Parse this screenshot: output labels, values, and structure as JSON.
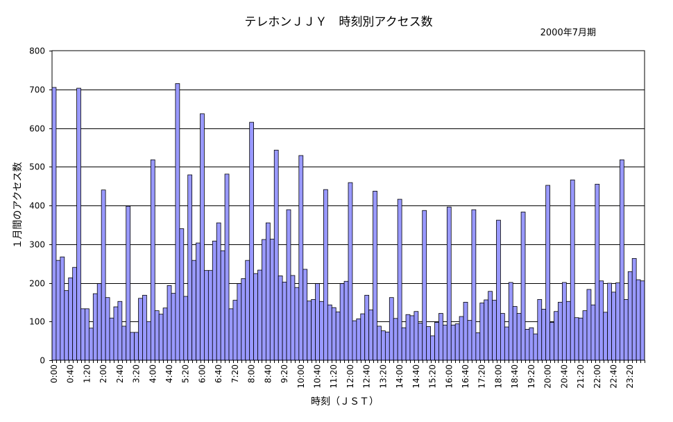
{
  "chart_data": {
    "type": "bar",
    "title": "テレホンＪＪＹ　時刻別アクセス数",
    "subtitle": "2000年7月期",
    "xlabel": "時刻（ＪＳＴ）",
    "ylabel": "１月間のアクセス数",
    "ylim": [
      0,
      800
    ],
    "yticks": [
      0,
      100,
      200,
      300,
      400,
      500,
      600,
      700,
      800
    ],
    "x_tick_labels": [
      "0:00",
      "0:40",
      "1:20",
      "2:00",
      "2:40",
      "3:20",
      "4:00",
      "4:40",
      "5:20",
      "6:00",
      "6:40",
      "7:20",
      "8:00",
      "8:40",
      "9:20",
      "10:00",
      "10:40",
      "11:20",
      "12:00",
      "12:40",
      "13:20",
      "14:00",
      "14:40",
      "15:20",
      "16:00",
      "16:40",
      "17:20",
      "18:00",
      "18:40",
      "19:20",
      "20:00",
      "20:40",
      "21:20",
      "22:00",
      "22:40",
      "23:20"
    ],
    "interval_minutes": 10,
    "bar_color": "#9999ff",
    "grid": true,
    "legend": "none",
    "values": [
      705,
      258,
      267,
      180,
      213,
      240,
      703,
      133,
      133,
      83,
      172,
      198,
      440,
      162,
      109,
      138,
      152,
      88,
      398,
      72,
      72,
      160,
      168,
      100,
      518,
      128,
      119,
      135,
      193,
      173,
      715,
      340,
      165,
      479,
      258,
      303,
      637,
      232,
      232,
      308,
      355,
      283,
      481,
      133,
      155,
      198,
      211,
      258,
      615,
      224,
      233,
      312,
      355,
      313,
      543,
      218,
      202,
      389,
      219,
      188,
      529,
      235,
      153,
      157,
      198,
      152,
      441,
      143,
      136,
      125,
      198,
      204,
      459,
      102,
      107,
      120,
      168,
      130,
      437,
      88,
      76,
      73,
      162,
      108,
      416,
      84,
      118,
      115,
      126,
      96,
      387,
      87,
      63,
      98,
      121,
      91,
      396,
      91,
      94,
      113,
      150,
      103,
      389,
      71,
      148,
      156,
      178,
      155,
      362,
      121,
      86,
      201,
      139,
      121,
      383,
      80,
      84,
      68,
      157,
      132,
      452,
      98,
      126,
      150,
      201,
      152,
      466,
      110,
      109,
      128,
      183,
      143,
      455,
      205,
      124,
      199,
      176,
      200,
      518,
      157,
      229,
      263,
      208,
      205
    ]
  }
}
